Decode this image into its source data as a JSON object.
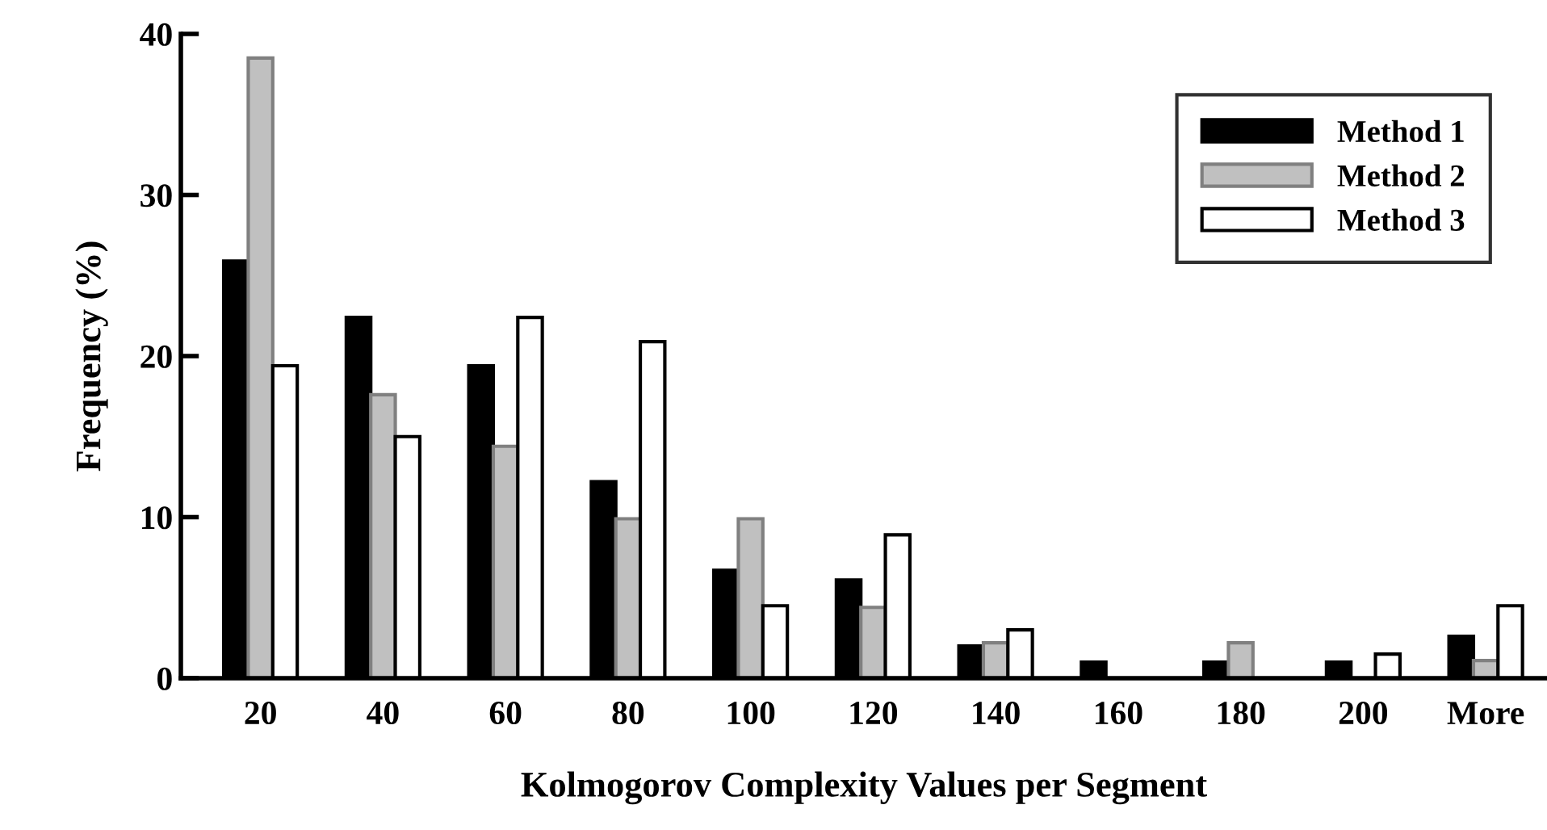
{
  "chart_data": {
    "type": "bar",
    "xlabel": "Kolmogorov Complexity Values per Segment",
    "ylabel": "Frequency (%)",
    "categories": [
      "20",
      "40",
      "60",
      "80",
      "100",
      "120",
      "140",
      "160",
      "180",
      "200",
      "More"
    ],
    "series": [
      {
        "name": "Method 1",
        "color": "#000000",
        "values": [
          25.9,
          22.4,
          19.4,
          12.2,
          6.7,
          6.1,
          2.0,
          1.0,
          1.0,
          1.0,
          2.6
        ]
      },
      {
        "name": "Method 2",
        "color": "#c0c0c0",
        "values": [
          38.5,
          17.6,
          14.4,
          9.9,
          9.9,
          4.4,
          2.2,
          0,
          2.2,
          0,
          1.1
        ]
      },
      {
        "name": "Method 3",
        "color": "#ffffff",
        "values": [
          19.4,
          15.0,
          22.4,
          20.9,
          4.5,
          8.9,
          3.0,
          0,
          0,
          1.5,
          4.5
        ]
      }
    ],
    "ylim": [
      0,
      40
    ],
    "yticks": [
      0,
      10,
      20,
      30,
      40
    ],
    "grid": false,
    "legend": "top right"
  }
}
